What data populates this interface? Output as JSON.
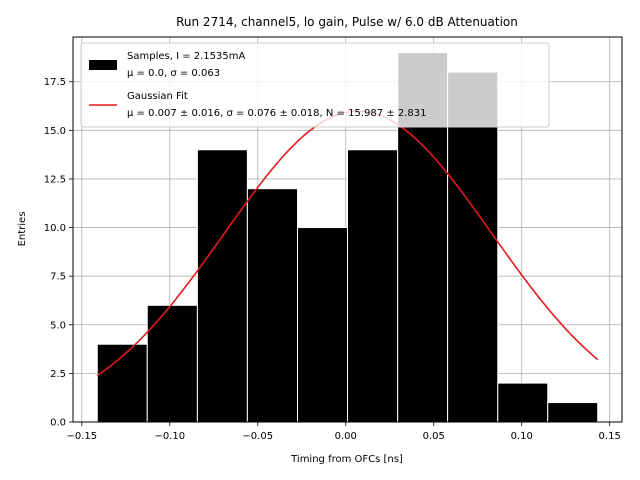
{
  "chart_data": {
    "type": "bar",
    "title": "Run 2714, channel5, lo gain, Pulse w/ 6.0 dB Attenuation",
    "xlabel": "Timing from OFCs [ns]",
    "ylabel": "Entries",
    "xlim": [
      -0.155,
      0.157
    ],
    "ylim": [
      0,
      19.8
    ],
    "grid": true,
    "legend_position": "upper-left",
    "x_ticks": [
      {
        "value": -0.15,
        "label": "−0.15"
      },
      {
        "value": -0.1,
        "label": "−0.10"
      },
      {
        "value": -0.05,
        "label": "−0.05"
      },
      {
        "value": 0.0,
        "label": "0.00"
      },
      {
        "value": 0.05,
        "label": "0.05"
      },
      {
        "value": 0.1,
        "label": "0.10"
      },
      {
        "value": 0.15,
        "label": "0.15"
      }
    ],
    "y_ticks": [
      {
        "value": 0.0,
        "label": "0.0"
      },
      {
        "value": 2.5,
        "label": "2.5"
      },
      {
        "value": 5.0,
        "label": "5.0"
      },
      {
        "value": 7.5,
        "label": "7.5"
      },
      {
        "value": 10.0,
        "label": "10.0"
      },
      {
        "value": 12.5,
        "label": "12.5"
      },
      {
        "value": 15.0,
        "label": "15.0"
      },
      {
        "value": 17.5,
        "label": "17.5"
      }
    ],
    "histogram": {
      "bin_edges": [
        -0.1412,
        -0.1128,
        -0.0843,
        -0.0559,
        -0.0274,
        0.001,
        0.0295,
        0.0579,
        0.0864,
        0.1148,
        0.1432
      ],
      "counts": [
        4,
        6,
        14,
        12,
        10,
        14,
        19,
        18,
        2,
        1
      ],
      "color": "#000000",
      "edge_color": "#ffffff"
    },
    "fit": {
      "mu": 0.007,
      "sigma": 0.076,
      "N": 15.987,
      "x_range": [
        -0.1412,
        0.1432
      ],
      "color": "#e41a1c"
    },
    "series": [
      {
        "name": "Samples, I = 2.1535mA",
        "stats": "μ = 0.0, σ = 0.063"
      },
      {
        "name": "Gaussian Fit",
        "stats": "μ = 0.007 ± 0.016, σ = 0.076 ± 0.018, N = 15.987 ± 2.831"
      }
    ]
  }
}
